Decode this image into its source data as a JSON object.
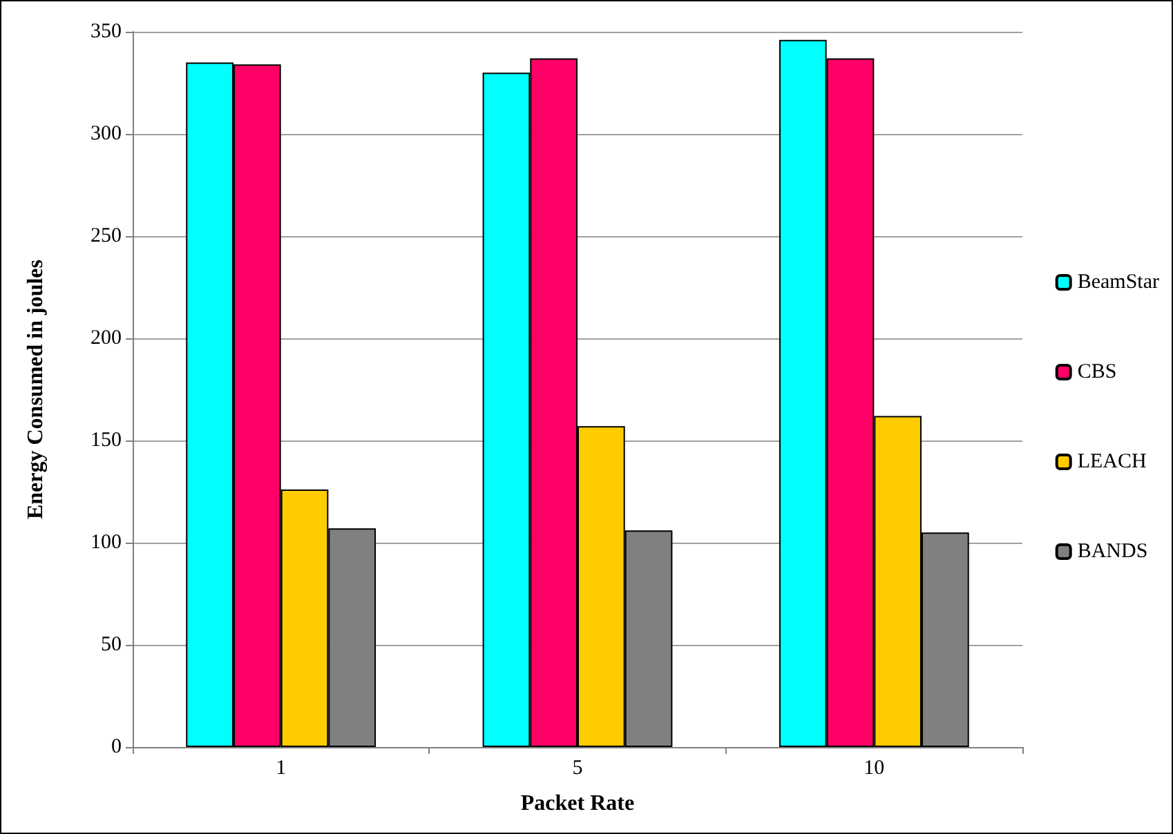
{
  "chart_data": {
    "type": "bar",
    "xlabel": "Packet Rate",
    "ylabel": "Energy Consumed in joules",
    "categories": [
      "1",
      "5",
      "10"
    ],
    "series": [
      {
        "name": "BeamStar",
        "color": "#00ffff",
        "values": [
          335,
          330,
          346
        ]
      },
      {
        "name": "CBS",
        "color": "#ff0066",
        "values": [
          334,
          337,
          337
        ]
      },
      {
        "name": "LEACH",
        "color": "#ffcc00",
        "values": [
          126,
          157,
          162
        ]
      },
      {
        "name": "BANDS",
        "color": "#808080",
        "values": [
          107,
          106,
          105
        ]
      }
    ],
    "ylim": [
      0,
      350
    ],
    "yticks": [
      0,
      50,
      100,
      150,
      200,
      250,
      300,
      350
    ],
    "grid": "y",
    "legend": "right"
  }
}
